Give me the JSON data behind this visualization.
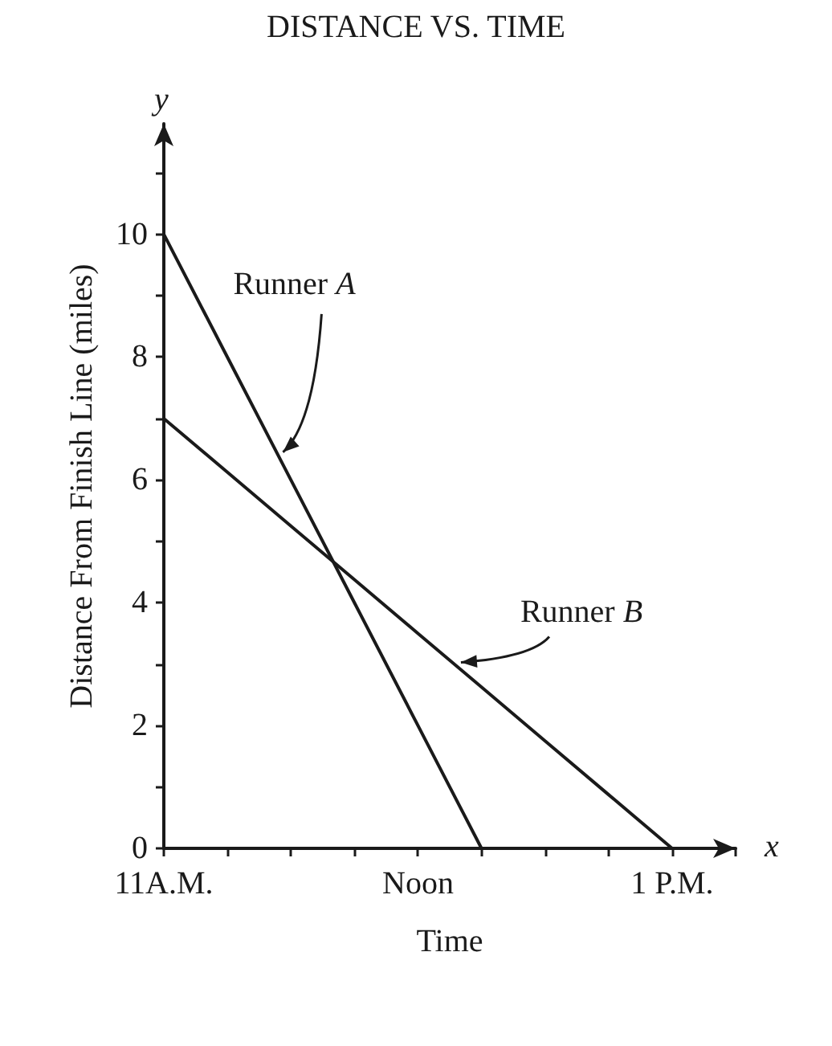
{
  "chart_data": {
    "type": "line",
    "title": "DISTANCE VS. TIME",
    "xlabel": "Time",
    "ylabel": "Distance From Finish Line (miles)",
    "annotations": [
      "x",
      "y"
    ],
    "categories": [
      "11A.M.",
      null,
      null,
      null,
      "Noon",
      null,
      null,
      null,
      "1 P.M.",
      null
    ],
    "series": [
      {
        "name": "Runner A",
        "color": "#1a1a1a",
        "values": [
          10,
          8,
          6,
          4,
          2,
          0,
          null,
          null,
          null,
          null
        ]
      },
      {
        "name": "Runner B",
        "color": "#1a1a1a",
        "values": [
          7,
          6.125,
          5.25,
          4.375,
          3.5,
          2.625,
          1.75,
          0.875,
          0,
          null
        ]
      }
    ],
    "ylim": [
      0,
      11.8
    ],
    "yticks": [
      0,
      {
        "value": 1,
        "label": null
      },
      2,
      {
        "value": 3,
        "label": null
      },
      4,
      {
        "value": 5,
        "label": null
      },
      6,
      {
        "value": 7,
        "label": null
      },
      8,
      {
        "value": 9,
        "label": null
      },
      10,
      {
        "value": 11,
        "label": null
      }
    ],
    "legend": false,
    "grid": false,
    "marker": "none",
    "line_style": "solid"
  }
}
